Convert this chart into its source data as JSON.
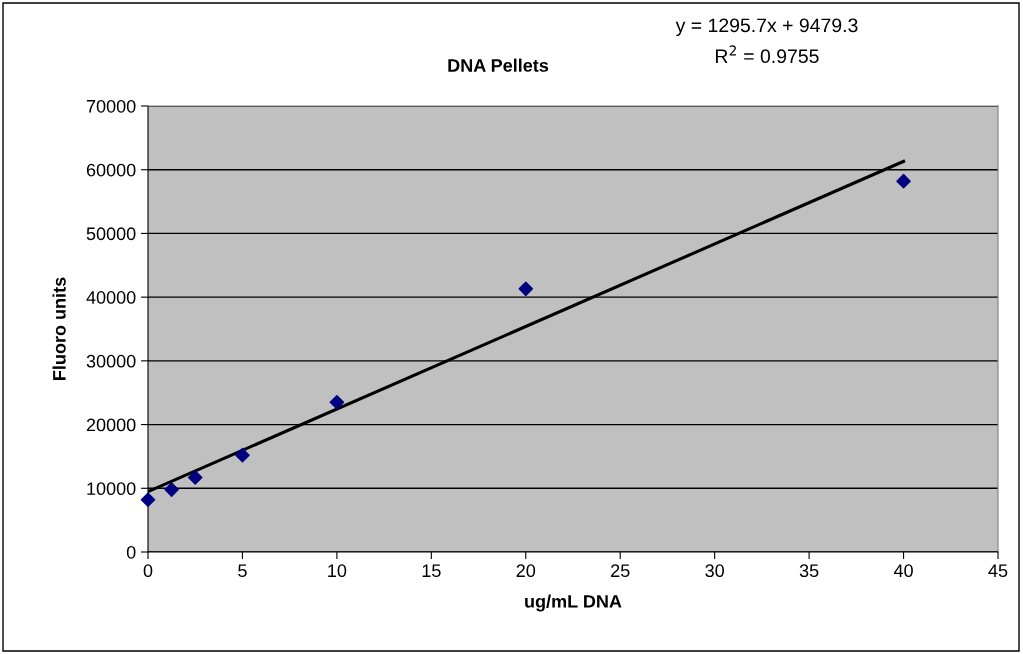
{
  "chart_data": {
    "type": "scatter",
    "title": "DNA Pellets",
    "xlabel": "ug/mL DNA",
    "ylabel": "Fluoro units",
    "annotations": [
      "y = 1295.7x + 9479.3",
      "R$^{2}$ = 0.9755"
    ],
    "x": [
      0,
      1.25,
      2.5,
      5,
      10,
      20,
      40
    ],
    "series": [
      {
        "color": "#000080",
        "values": [
          8200,
          9800,
          11700,
          15200,
          23500,
          41300,
          58200
        ],
        "marker": "diamond"
      },
      {
        "type": "line",
        "color": "#000000",
        "x": [
          0,
          40
        ],
        "values": [
          9479.3,
          61307.3
        ],
        "marker": "none",
        "line_style": "solid"
      }
    ],
    "xlim": [
      0,
      45
    ],
    "xticks": [
      0,
      5,
      10,
      15,
      20,
      25,
      30,
      35,
      40,
      45
    ],
    "ylim": [
      0,
      70000
    ],
    "yticks": [
      0,
      10000,
      20000,
      30000,
      40000,
      50000,
      60000,
      70000
    ],
    "grid": "y",
    "legend": false
  }
}
